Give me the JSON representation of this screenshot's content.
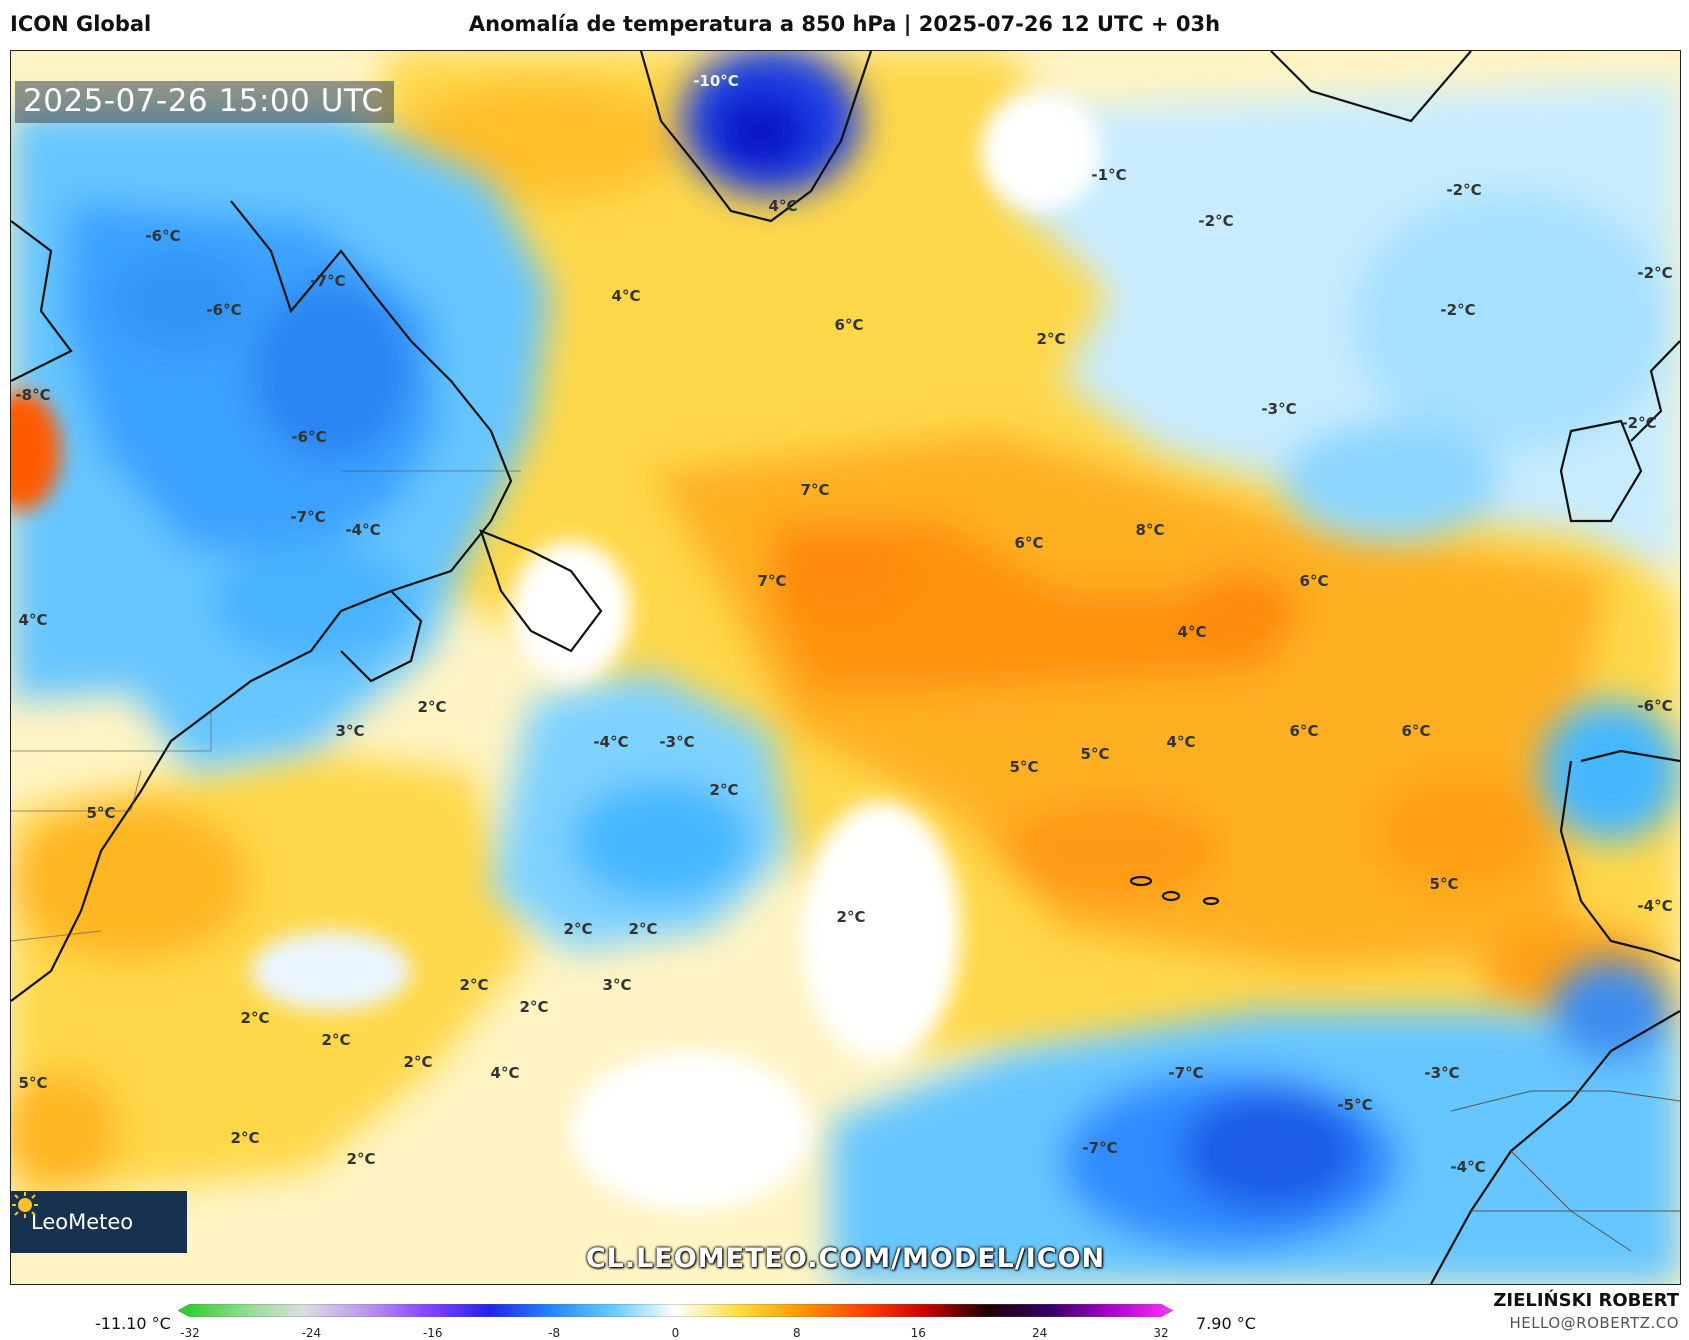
{
  "header": {
    "model": "ICON Global",
    "title": "Anomalía de temperatura a 850 hPa | 2025-07-26 12 UTC + 03h"
  },
  "map": {
    "valid_time": "2025-07-26 15:00 UTC",
    "watermark_url": "CL.LEOMETEO.COM/MODEL/ICON",
    "logo_text": "LeoMeteo",
    "labels": [
      {
        "id": "greenland",
        "text": "-10°C",
        "light": true
      },
      {
        "id": "greenland-s",
        "text": "4°C"
      },
      {
        "id": "lab-1",
        "text": "-6°C"
      },
      {
        "id": "lab-2",
        "text": "-7°C"
      },
      {
        "id": "lab-3",
        "text": "-6°C"
      },
      {
        "id": "lab-4",
        "text": "-6°C"
      },
      {
        "id": "gl-west",
        "text": "-8°C"
      },
      {
        "id": "que-1",
        "text": "-7°C"
      },
      {
        "id": "que-2",
        "text": "-4°C"
      },
      {
        "id": "atl-1",
        "text": "4°C"
      },
      {
        "id": "atl-2",
        "text": "6°C"
      },
      {
        "id": "atl-3",
        "text": "2°C"
      },
      {
        "id": "ice-1",
        "text": "-1°C"
      },
      {
        "id": "ice-2",
        "text": "-2°C"
      },
      {
        "id": "ice-3",
        "text": "-2°C"
      },
      {
        "id": "ice-4",
        "text": "-2°C"
      },
      {
        "id": "uk-1",
        "text": "-3°C"
      },
      {
        "id": "uk-2",
        "text": "-2°C"
      },
      {
        "id": "no-1",
        "text": "-2°C"
      },
      {
        "id": "mid-1",
        "text": "7°C"
      },
      {
        "id": "mid-2",
        "text": "7°C"
      },
      {
        "id": "mid-3",
        "text": "6°C"
      },
      {
        "id": "mid-4",
        "text": "8°C"
      },
      {
        "id": "mid-5",
        "text": "6°C"
      },
      {
        "id": "mid-6",
        "text": "4°C"
      },
      {
        "id": "w-1",
        "text": "4°C"
      },
      {
        "id": "w-2",
        "text": "2°C"
      },
      {
        "id": "w-3",
        "text": "3°C"
      },
      {
        "id": "w-4",
        "text": "5°C"
      },
      {
        "id": "cb-1",
        "text": "-4°C"
      },
      {
        "id": "cb-2",
        "text": "-3°C"
      },
      {
        "id": "c-1",
        "text": "2°C"
      },
      {
        "id": "az-1",
        "text": "5°C"
      },
      {
        "id": "az-2",
        "text": "5°C"
      },
      {
        "id": "az-3",
        "text": "4°C"
      },
      {
        "id": "az-4",
        "text": "6°C"
      },
      {
        "id": "az-5",
        "text": "6°C"
      },
      {
        "id": "ib-1",
        "text": "-6°C"
      },
      {
        "id": "mor-1",
        "text": "5°C"
      },
      {
        "id": "mor-2",
        "text": "-4°C"
      },
      {
        "id": "s-1",
        "text": "2°C"
      },
      {
        "id": "s-2",
        "text": "2°C"
      },
      {
        "id": "s-3",
        "text": "2°C"
      },
      {
        "id": "s-4",
        "text": "2°C"
      },
      {
        "id": "s-5",
        "text": "3°C"
      },
      {
        "id": "s-6",
        "text": "2°C"
      },
      {
        "id": "s-7",
        "text": "2°C"
      },
      {
        "id": "s-8",
        "text": "2°C"
      },
      {
        "id": "s-9",
        "text": "2°C"
      },
      {
        "id": "s-10",
        "text": "4°C"
      },
      {
        "id": "s-11",
        "text": "2°C"
      },
      {
        "id": "s-12",
        "text": "2°C"
      },
      {
        "id": "s-13",
        "text": "5°C"
      },
      {
        "id": "se-1",
        "text": "-7°C"
      },
      {
        "id": "se-2",
        "text": "-7°C"
      },
      {
        "id": "af-1",
        "text": "-3°C"
      },
      {
        "id": "af-2",
        "text": "-5°C"
      },
      {
        "id": "af-3",
        "text": "-4°C"
      }
    ]
  },
  "colorbar": {
    "min_label": "-11.10 °C",
    "max_label": "7.90 °C",
    "ticks": [
      "-32",
      "-24",
      "-16",
      "-8",
      "0",
      "8",
      "16",
      "24",
      "32"
    ],
    "colors": [
      "#22cc22",
      "#88dd88",
      "#dddddd",
      "#bb99ee",
      "#8844ff",
      "#2222ee",
      "#2288ff",
      "#66ccff",
      "#ffffff",
      "#ffdd44",
      "#ff9900",
      "#ff4400",
      "#cc0000",
      "#220000",
      "#330066",
      "#aa00cc",
      "#ff33ff"
    ]
  },
  "footer": {
    "author": "ZIELIŃSKI ROBERT",
    "email": "HELLO@ROBERTZ.CO"
  }
}
